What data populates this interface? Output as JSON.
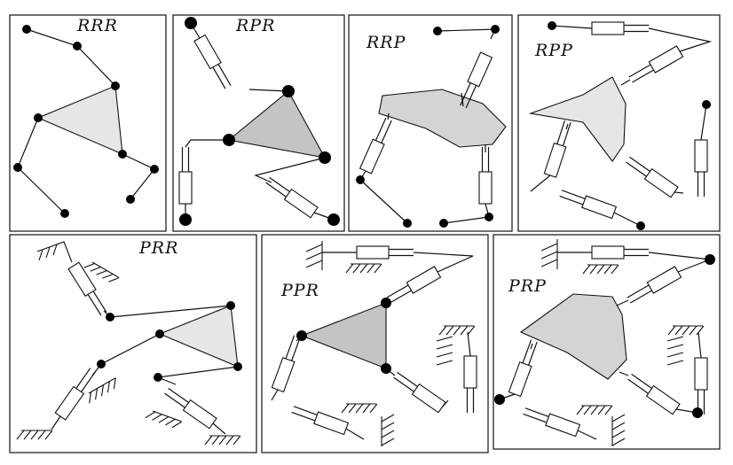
{
  "figure": {
    "panels": [
      {
        "id": "rrr",
        "label": "RRR"
      },
      {
        "id": "rpr",
        "label": "RPR"
      },
      {
        "id": "rrp",
        "label": "RRP"
      },
      {
        "id": "rpp",
        "label": "RPP"
      },
      {
        "id": "prr",
        "label": "PRR"
      },
      {
        "id": "ppr",
        "label": "PPR"
      },
      {
        "id": "prp",
        "label": "PRP"
      }
    ]
  }
}
